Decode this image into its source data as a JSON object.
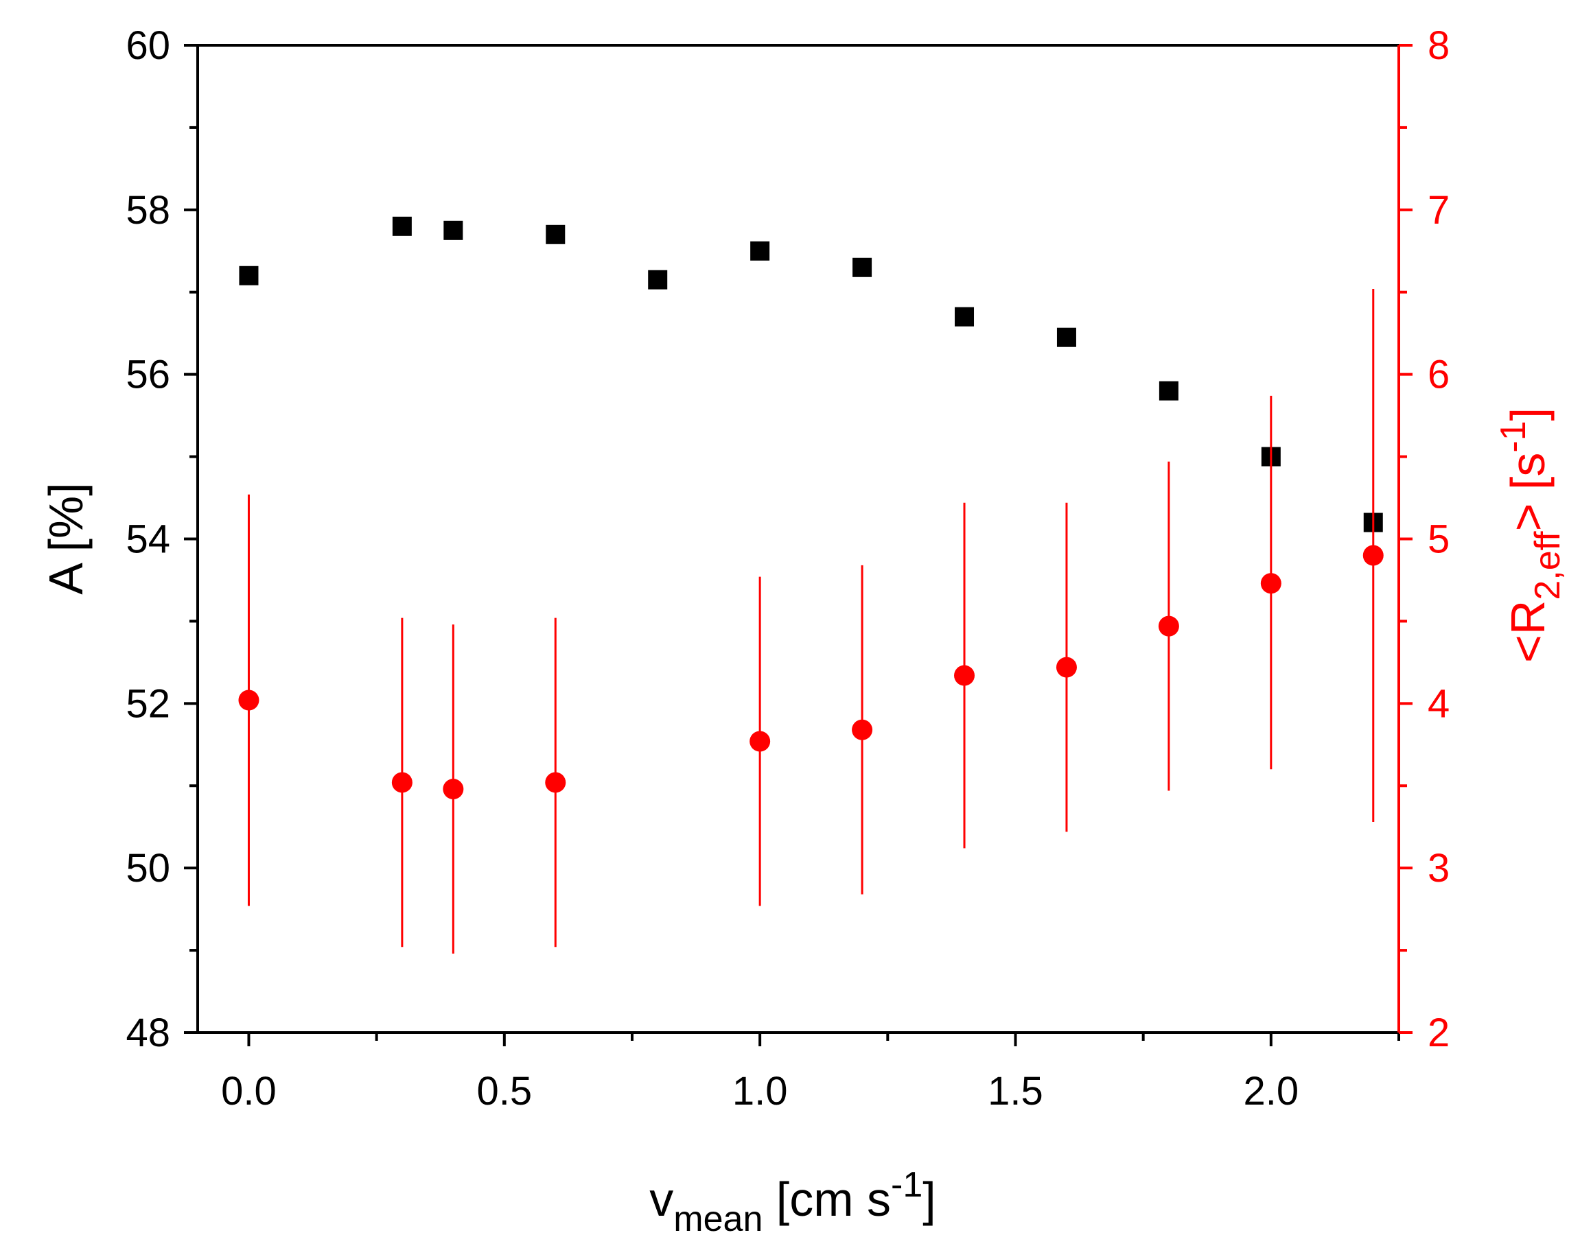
{
  "chart_data": {
    "type": "scatter",
    "xlabel": {
      "main": "v",
      "sub": "mean",
      "rest": " [cm s",
      "sup": "-1",
      "end": "]"
    },
    "ylabel_left": "A [%]",
    "ylabel_right": {
      "main": "<R",
      "sub": "2,eff",
      "rest": "> [s",
      "sup": "-1",
      "end": "]"
    },
    "xlim": [
      -0.1,
      2.25
    ],
    "ylim_left": [
      48,
      60
    ],
    "ylim_right": [
      2,
      8
    ],
    "x_ticks": [
      0.0,
      0.5,
      1.0,
      1.5,
      2.0
    ],
    "x_tick_labels": [
      "0.0",
      "0.5",
      "1.0",
      "1.5",
      "2.0"
    ],
    "y_left_ticks": [
      48,
      50,
      52,
      54,
      56,
      58,
      60
    ],
    "y_left_tick_labels": [
      "48",
      "50",
      "52",
      "54",
      "56",
      "58",
      "60"
    ],
    "y_right_ticks": [
      2,
      3,
      4,
      5,
      6,
      7,
      8
    ],
    "y_right_tick_labels": [
      "2",
      "3",
      "4",
      "5",
      "6",
      "7",
      "8"
    ],
    "colors": {
      "left": "#000000",
      "right": "#ff0000"
    },
    "series": [
      {
        "name": "A",
        "axis": "left",
        "marker": "square",
        "color": "#000000",
        "x": [
          0.0,
          0.3,
          0.4,
          0.6,
          0.8,
          1.0,
          1.2,
          1.4,
          1.6,
          1.8,
          2.0,
          2.2
        ],
        "y": [
          57.2,
          57.8,
          57.75,
          57.7,
          57.15,
          57.5,
          57.3,
          56.7,
          56.45,
          55.8,
          55.0,
          54.2
        ]
      },
      {
        "name": "<R2,eff>",
        "axis": "right",
        "marker": "circle",
        "color": "#ff0000",
        "x": [
          0.0,
          0.3,
          0.4,
          0.6,
          1.0,
          1.2,
          1.4,
          1.6,
          1.8,
          2.0,
          2.2
        ],
        "y": [
          4.02,
          3.52,
          3.48,
          3.52,
          3.77,
          3.84,
          4.17,
          4.22,
          4.47,
          4.73,
          4.9
        ],
        "err_low": [
          2.77,
          2.52,
          2.48,
          2.52,
          2.77,
          2.84,
          3.12,
          3.22,
          3.47,
          3.6,
          3.28
        ],
        "err_high": [
          5.27,
          4.52,
          4.48,
          4.52,
          4.77,
          4.84,
          5.22,
          5.22,
          5.47,
          5.87,
          6.52
        ]
      }
    ]
  }
}
